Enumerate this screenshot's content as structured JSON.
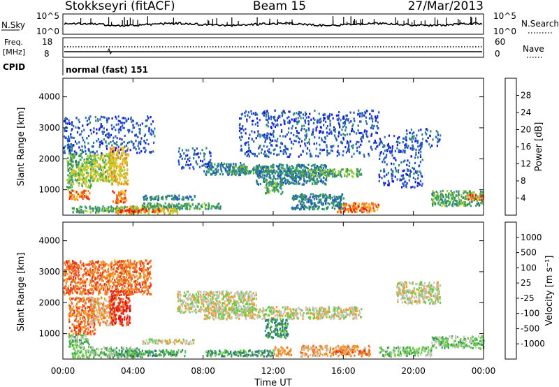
{
  "header": {
    "station": "Stokkseyri (fitACF)",
    "beam": "Beam 15",
    "date": "27/Mar/2013"
  },
  "top_panels": {
    "nsky_label": "N.Sky",
    "nsearch_label": "N.Search",
    "nsky_ticks": [
      "10^5",
      "10^0"
    ],
    "nsearch_ticks": [
      "10^5",
      "10^0"
    ],
    "freq_label": [
      "Freq.",
      "[MHz]"
    ],
    "freq_ticks": [
      "18",
      "8"
    ],
    "nave_label": "Nave",
    "nave_ticks": [
      "60",
      "0"
    ],
    "cpid_label": "CPID",
    "cpid_value": "normal (fast) 151"
  },
  "chart_data": [
    {
      "type": "heatmap",
      "name": "Power",
      "ylabel": "Slant Range [km]",
      "xlabel": "",
      "yticks": [
        "1000",
        "2000",
        "3000",
        "4000"
      ],
      "ylim": [
        180,
        4600
      ],
      "xlim": [
        0,
        24
      ],
      "colorbar": {
        "label": "Power [dB]",
        "ticks": [
          "4",
          "8",
          "12",
          "16",
          "20",
          "24",
          "28"
        ],
        "range": [
          0,
          30
        ],
        "colors": [
          "#1515e0",
          "#2255c8",
          "#2e8080",
          "#3aa060",
          "#a0cc30",
          "#f0c020",
          "#f08020",
          "#e82010"
        ]
      },
      "regions": [
        {
          "t": [
            0.2,
            0.5
          ],
          "r": [
            1000,
            2500
          ],
          "level": 3
        },
        {
          "t": [
            0.4,
            1.8
          ],
          "r": [
            1800,
            2200
          ],
          "level": 3
        },
        {
          "t": [
            0.4,
            1.6
          ],
          "r": [
            1100,
            1800
          ],
          "level": 4
        },
        {
          "t": [
            0.3,
            1.5
          ],
          "r": [
            700,
            1000
          ],
          "level": 6
        },
        {
          "t": [
            1.5,
            3.0
          ],
          "r": [
            1300,
            2200
          ],
          "level": 4
        },
        {
          "t": [
            2.6,
            3.7
          ],
          "r": [
            1200,
            2400
          ],
          "level": 5
        },
        {
          "t": [
            2.8,
            3.6
          ],
          "r": [
            600,
            1000
          ],
          "level": 6
        },
        {
          "t": [
            0.0,
            5.2
          ],
          "r": [
            2200,
            3400
          ],
          "level": 1
        },
        {
          "t": [
            0.5,
            4.3
          ],
          "r": [
            300,
            500
          ],
          "level": 3
        },
        {
          "t": [
            3.0,
            6.5
          ],
          "r": [
            250,
            500
          ],
          "level": 5
        },
        {
          "t": [
            3.2,
            5.5
          ],
          "r": [
            300,
            420
          ],
          "level": 7
        },
        {
          "t": [
            4.5,
            7.5
          ],
          "r": [
            700,
            850
          ],
          "level": 2
        },
        {
          "t": [
            4.5,
            9.0
          ],
          "r": [
            400,
            600
          ],
          "level": 3
        },
        {
          "t": [
            6.5,
            8.5
          ],
          "r": [
            1700,
            2400
          ],
          "level": 1
        },
        {
          "t": [
            8.0,
            10.5
          ],
          "r": [
            1500,
            1900
          ],
          "level": 2
        },
        {
          "t": [
            9.5,
            12.0
          ],
          "r": [
            1550,
            1800
          ],
          "level": 3
        },
        {
          "t": [
            11.0,
            15.0
          ],
          "r": [
            1200,
            1850
          ],
          "level": 2
        },
        {
          "t": [
            11.5,
            12.5
          ],
          "r": [
            900,
            1300
          ],
          "level": 3
        },
        {
          "t": [
            13.0,
            17.0
          ],
          "r": [
            1450,
            1700
          ],
          "level": 3
        },
        {
          "t": [
            15.5,
            18.0
          ],
          "r": [
            300,
            600
          ],
          "level": 6
        },
        {
          "t": [
            16.0,
            17.5
          ],
          "r": [
            350,
            450
          ],
          "level": 7
        },
        {
          "t": [
            13.0,
            16.0
          ],
          "r": [
            400,
            900
          ],
          "level": 2
        },
        {
          "t": [
            18.0,
            20.5
          ],
          "r": [
            1100,
            2800
          ],
          "level": 1
        },
        {
          "t": [
            19.5,
            21.5
          ],
          "r": [
            2400,
            3000
          ],
          "level": 1
        },
        {
          "t": [
            21.0,
            24.0
          ],
          "r": [
            500,
            1000
          ],
          "level": 3
        },
        {
          "t": [
            23.0,
            24.0
          ],
          "r": [
            700,
            900
          ],
          "level": 6
        },
        {
          "t": [
            10.0,
            18.0
          ],
          "r": [
            2100,
            3600
          ],
          "level": 1
        }
      ]
    },
    {
      "type": "heatmap",
      "name": "Velocity",
      "ylabel": "Slant Range [km]",
      "xlabel": "Time UT",
      "yticks": [
        "1000",
        "2000",
        "3000",
        "4000"
      ],
      "xticks": [
        "00:00",
        "04:00",
        "08:00",
        "12:00",
        "16:00",
        "20:00",
        "00:00"
      ],
      "ylim": [
        180,
        4600
      ],
      "xlim": [
        0,
        24
      ],
      "colorbar": {
        "label": "Velocity [m s⁻¹]",
        "ticks": [
          "1000",
          "500",
          "100",
          "25",
          "-25",
          "-100",
          "-500",
          "-1000"
        ],
        "colors": [
          "#2a3aa8",
          "#2e6c88",
          "#3a9a5a",
          "#66cc44",
          "#c4c4bc",
          "#f0a030",
          "#f07020",
          "#e83020",
          "#e01010"
        ]
      },
      "regions": [
        {
          "t": [
            0.3,
            1.8
          ],
          "r": [
            1000,
            2200
          ],
          "level": 6
        },
        {
          "t": [
            1.5,
            3.0
          ],
          "r": [
            1300,
            2200
          ],
          "level": 5
        },
        {
          "t": [
            2.6,
            3.8
          ],
          "r": [
            1300,
            2500
          ],
          "level": 7
        },
        {
          "t": [
            0.3,
            1.5
          ],
          "r": [
            600,
            1000
          ],
          "level": 3
        },
        {
          "t": [
            0.5,
            4.5
          ],
          "r": [
            250,
            600
          ],
          "level": 3
        },
        {
          "t": [
            3.0,
            7.0
          ],
          "r": [
            300,
            500
          ],
          "level": 2
        },
        {
          "t": [
            4.5,
            7.5
          ],
          "r": [
            700,
            850
          ],
          "level": 4
        },
        {
          "t": [
            6.5,
            11.0
          ],
          "r": [
            1700,
            2400
          ],
          "level": 4
        },
        {
          "t": [
            8.0,
            17.0
          ],
          "r": [
            1500,
            1900
          ],
          "level": 4
        },
        {
          "t": [
            11.5,
            12.8
          ],
          "r": [
            900,
            1500
          ],
          "level": 2
        },
        {
          "t": [
            12.0,
            13.0
          ],
          "r": [
            300,
            600
          ],
          "level": 5
        },
        {
          "t": [
            13.5,
            17.5
          ],
          "r": [
            300,
            650
          ],
          "level": 5
        },
        {
          "t": [
            15.5,
            17.5
          ],
          "r": [
            350,
            500
          ],
          "level": 6
        },
        {
          "t": [
            8.0,
            12.0
          ],
          "r": [
            300,
            500
          ],
          "level": 2
        },
        {
          "t": [
            18.0,
            21.0
          ],
          "r": [
            300,
            600
          ],
          "level": 3
        },
        {
          "t": [
            19.0,
            21.5
          ],
          "r": [
            2000,
            2700
          ],
          "level": 4
        },
        {
          "t": [
            21.0,
            24.0
          ],
          "r": [
            550,
            950
          ],
          "level": 3
        },
        {
          "t": [
            0.0,
            5.0
          ],
          "r": [
            2300,
            3400
          ],
          "level": 6
        }
      ]
    }
  ]
}
